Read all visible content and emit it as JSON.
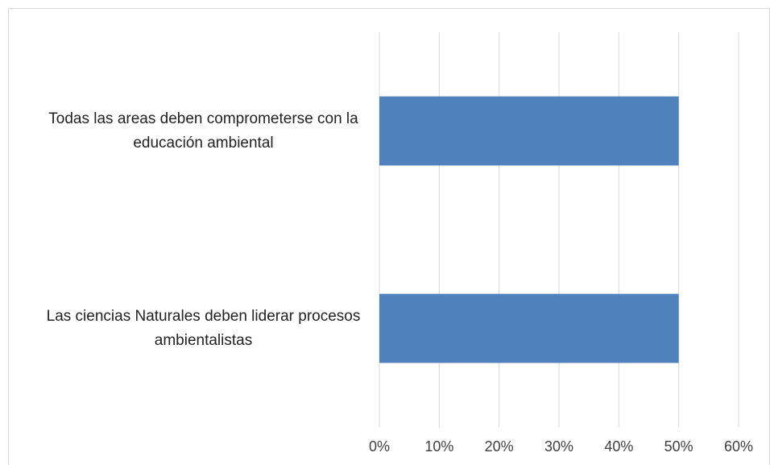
{
  "chart_data": {
    "type": "barh",
    "categories": [
      "Todas las areas deben comprometerse con la educación ambiental",
      "Las ciencias Naturales deben liderar procesos ambientalistas"
    ],
    "values": [
      50,
      50
    ],
    "color": "#4f81bd",
    "xlim": [
      0,
      60
    ],
    "xticks": [
      {
        "value": 0,
        "label": "0%"
      },
      {
        "value": 10,
        "label": "10%"
      },
      {
        "value": 20,
        "label": "20%"
      },
      {
        "value": 30,
        "label": "30%"
      },
      {
        "value": 40,
        "label": "40%"
      },
      {
        "value": 50,
        "label": "50%"
      },
      {
        "value": 60,
        "label": "60%"
      }
    ],
    "grid": true
  }
}
